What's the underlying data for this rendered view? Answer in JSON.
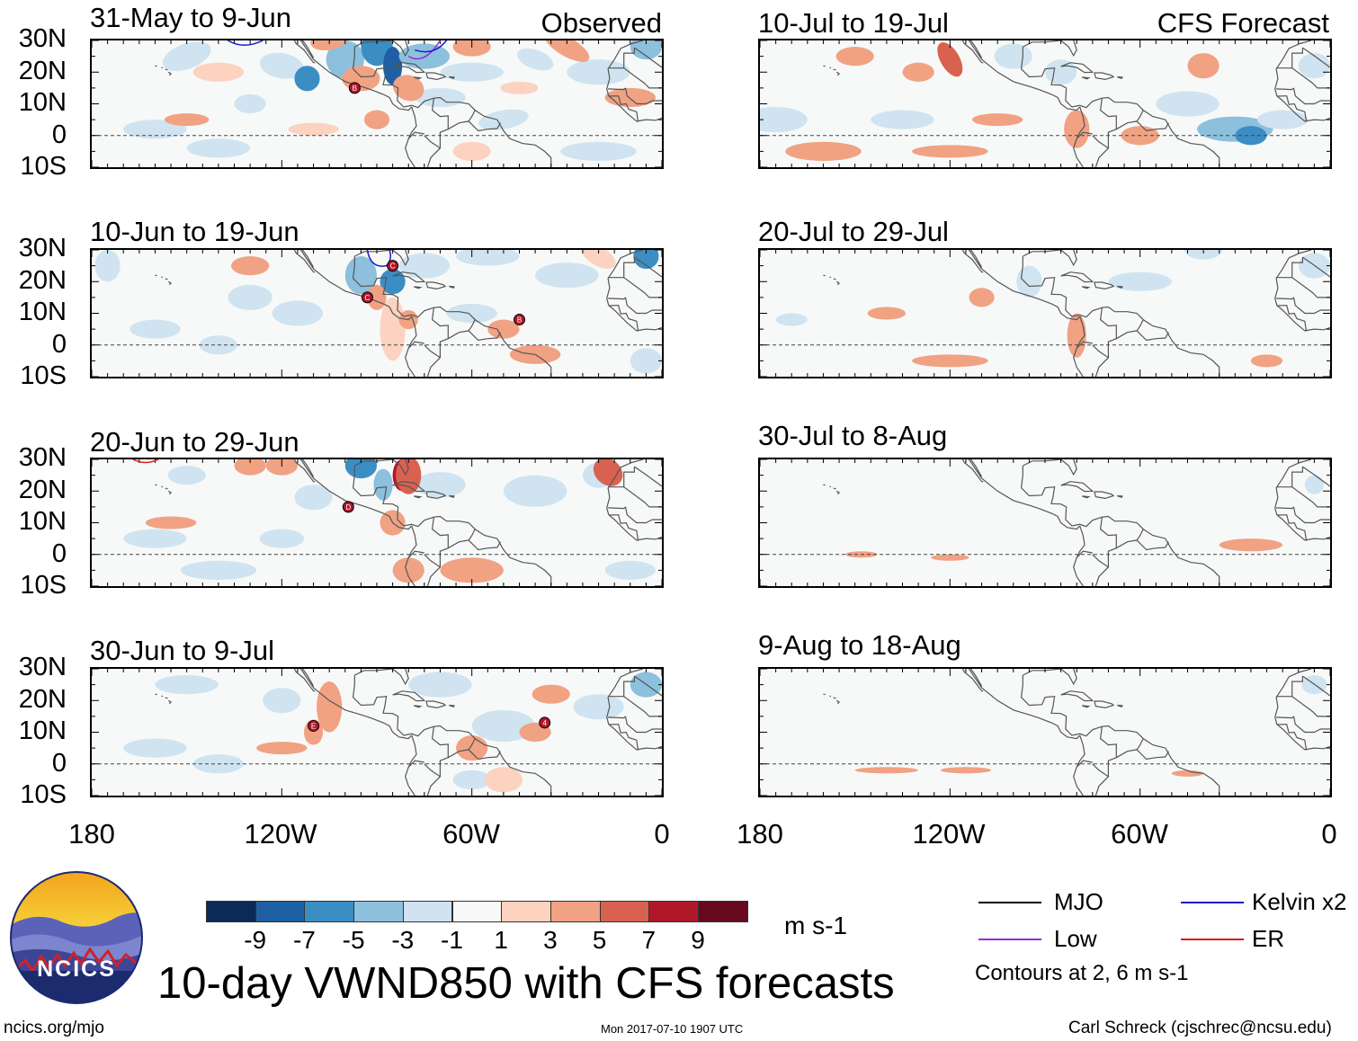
{
  "observed": {
    "tag": "Observed",
    "panels": [
      {
        "title": "31-May to 9-Jun",
        "storms": [
          "B"
        ]
      },
      {
        "title": "10-Jun to 19-Jun",
        "storms": [
          "C",
          "C",
          "B"
        ]
      },
      {
        "title": "20-Jun to 29-Jun",
        "storms": [
          "D"
        ]
      },
      {
        "title": "30-Jun to 9-Jul",
        "storms": [
          "E",
          "4"
        ]
      }
    ]
  },
  "forecast": {
    "tag": "CFS Forecast",
    "panels": [
      {
        "title": "10-Jul to 19-Jul"
      },
      {
        "title": "20-Jul to 29-Jul"
      },
      {
        "title": "30-Jul to 8-Aug"
      },
      {
        "title": "9-Aug to 18-Aug"
      }
    ]
  },
  "axes": {
    "lat_labels": [
      "30N",
      "20N",
      "10N",
      "0",
      "10S"
    ],
    "lon_labels": [
      "180",
      "120W",
      "60W",
      "0"
    ]
  },
  "colorbar": {
    "labels": [
      "-9",
      "-7",
      "-5",
      "-3",
      "-1",
      "1",
      "3",
      "5",
      "7",
      "9"
    ],
    "colors": [
      "#0b2a57",
      "#1f5fa3",
      "#3b8ec4",
      "#8cc0dd",
      "#cfe4f0",
      "#f7f9f8",
      "#fbd3c0",
      "#f0a283",
      "#d96150",
      "#b1172b",
      "#670a1f"
    ],
    "units": "m s-1"
  },
  "legend": {
    "items": [
      {
        "label": "MJO",
        "color": "#000000"
      },
      {
        "label": "Kelvin x2",
        "color": "#1a1acc"
      },
      {
        "label": "Low",
        "color": "#9a2ad0"
      },
      {
        "label": "ER",
        "color": "#d91a1a"
      }
    ],
    "note": "Contours at 2, 6 m s-1"
  },
  "main_title": "10-day VWND850 with CFS forecasts",
  "logo_text": "NCICS",
  "footer": {
    "left": "ncics.org/mjo",
    "center": "Mon 2017-07-10 1907 UTC",
    "right": "Carl Schreck (cjschrec@ncsu.edu)"
  }
}
